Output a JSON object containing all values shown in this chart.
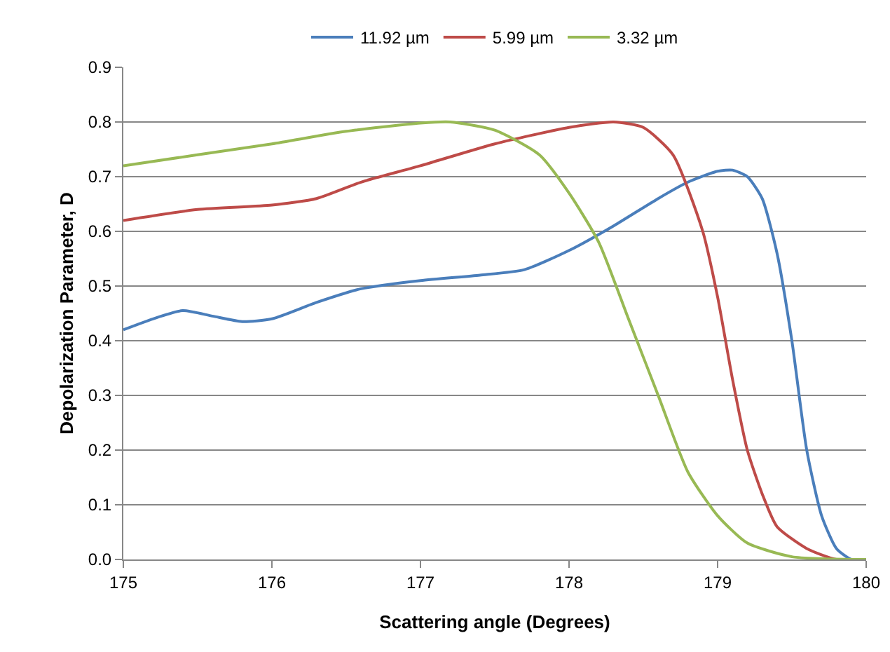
{
  "chart_data": {
    "type": "line",
    "xlabel": "Scattering angle (Degrees)",
    "ylabel": "Depolarization Parameter, D",
    "xlim": [
      175,
      180
    ],
    "xticks": [
      175,
      176,
      177,
      178,
      179,
      180
    ],
    "ylim": [
      0,
      0.9
    ],
    "yticks": [
      {
        "value": 0,
        "label": "0.0"
      },
      0.1,
      0.2,
      0.3,
      0.4,
      0.5,
      0.6,
      0.7,
      0.8,
      0.9
    ],
    "grid": "y",
    "legend": "top",
    "marker": "none",
    "line_style": "solid",
    "series": [
      {
        "name": "11.92 µm",
        "color": "#4a7ebb",
        "x": [
          175,
          175.2,
          175.4,
          175.6,
          175.8,
          176,
          176.3,
          176.6,
          177,
          177.4,
          177.7,
          178,
          178.3,
          178.6,
          178.8,
          179,
          179.1,
          179.2,
          179.3,
          179.4,
          179.5,
          179.6,
          179.7,
          179.8,
          179.9,
          180
        ],
        "values": [
          0.42,
          0.44,
          0.455,
          0.445,
          0.435,
          0.44,
          0.47,
          0.495,
          0.51,
          0.52,
          0.53,
          0.565,
          0.61,
          0.66,
          0.69,
          0.71,
          0.712,
          0.7,
          0.66,
          0.56,
          0.4,
          0.2,
          0.08,
          0.02,
          0,
          0
        ]
      },
      {
        "name": "5.99 µm",
        "color": "#be4b48",
        "x": [
          175,
          175.5,
          176,
          176.3,
          176.6,
          177,
          177.5,
          178,
          178.3,
          178.5,
          178.7,
          178.9,
          179,
          179.1,
          179.2,
          179.3,
          179.4,
          179.6,
          179.8,
          180
        ],
        "values": [
          0.62,
          0.64,
          0.648,
          0.66,
          0.69,
          0.72,
          0.76,
          0.79,
          0.8,
          0.79,
          0.74,
          0.6,
          0.48,
          0.33,
          0.2,
          0.12,
          0.06,
          0.02,
          0,
          0
        ]
      },
      {
        "name": "3.32 µm",
        "color": "#98b954",
        "x": [
          175,
          175.5,
          176,
          176.5,
          177,
          177.2,
          177.5,
          177.8,
          178,
          178.2,
          178.4,
          178.6,
          178.8,
          179,
          179.2,
          179.5,
          180
        ],
        "values": [
          0.72,
          0.74,
          0.76,
          0.783,
          0.798,
          0.8,
          0.785,
          0.74,
          0.67,
          0.58,
          0.44,
          0.3,
          0.16,
          0.08,
          0.03,
          0.005,
          0
        ]
      }
    ]
  }
}
